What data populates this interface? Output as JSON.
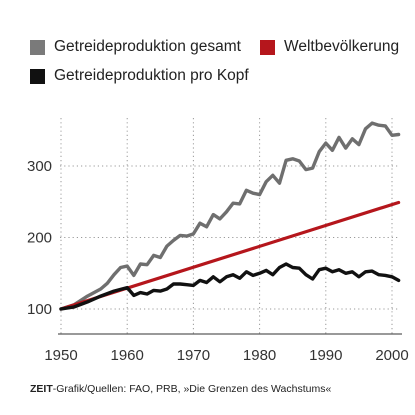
{
  "chart_data": {
    "type": "line",
    "xlim": [
      1950,
      2000
    ],
    "ylim": [
      100,
      350
    ],
    "x_ticks": [
      1950,
      1960,
      1970,
      1980,
      1990,
      2000
    ],
    "y_ticks": [
      100,
      200,
      300
    ],
    "grid": "horizontal dotted",
    "legend_position": "top",
    "series": [
      {
        "name": "Getreideproduktion gesamt",
        "color": "#6f6f6f",
        "points": [
          [
            1950,
            100
          ],
          [
            1952,
            106
          ],
          [
            1954,
            118
          ],
          [
            1956,
            128
          ],
          [
            1957,
            136
          ],
          [
            1958,
            148
          ],
          [
            1959,
            158
          ],
          [
            1960,
            160
          ],
          [
            1961,
            147
          ],
          [
            1962,
            163
          ],
          [
            1963,
            162
          ],
          [
            1964,
            175
          ],
          [
            1965,
            172
          ],
          [
            1966,
            188
          ],
          [
            1967,
            196
          ],
          [
            1968,
            203
          ],
          [
            1969,
            202
          ],
          [
            1970,
            205
          ],
          [
            1971,
            220
          ],
          [
            1972,
            215
          ],
          [
            1973,
            232
          ],
          [
            1974,
            226
          ],
          [
            1975,
            236
          ],
          [
            1976,
            248
          ],
          [
            1977,
            247
          ],
          [
            1978,
            266
          ],
          [
            1979,
            262
          ],
          [
            1980,
            260
          ],
          [
            1981,
            278
          ],
          [
            1982,
            287
          ],
          [
            1983,
            276
          ],
          [
            1984,
            308
          ],
          [
            1985,
            310
          ],
          [
            1986,
            307
          ],
          [
            1987,
            295
          ],
          [
            1988,
            297
          ],
          [
            1989,
            320
          ],
          [
            1990,
            332
          ],
          [
            1991,
            322
          ],
          [
            1992,
            340
          ],
          [
            1993,
            325
          ],
          [
            1994,
            338
          ],
          [
            1995,
            330
          ],
          [
            1996,
            352
          ],
          [
            1997,
            360
          ],
          [
            1998,
            357
          ],
          [
            1999,
            356
          ],
          [
            2000,
            343
          ],
          [
            2001,
            344
          ]
        ]
      },
      {
        "name": "Weltbevölkerung",
        "color": "#b5161c",
        "points": [
          [
            1950,
            100
          ],
          [
            2001,
            249
          ]
        ]
      },
      {
        "name": "Getreideproduktion pro Kopf",
        "color": "#111111",
        "points": [
          [
            1950,
            100
          ],
          [
            1952,
            103
          ],
          [
            1954,
            110
          ],
          [
            1956,
            118
          ],
          [
            1958,
            125
          ],
          [
            1960,
            130
          ],
          [
            1961,
            119
          ],
          [
            1962,
            123
          ],
          [
            1963,
            121
          ],
          [
            1964,
            126
          ],
          [
            1965,
            125
          ],
          [
            1966,
            128
          ],
          [
            1967,
            135
          ],
          [
            1968,
            135
          ],
          [
            1969,
            134
          ],
          [
            1970,
            133
          ],
          [
            1971,
            140
          ],
          [
            1972,
            137
          ],
          [
            1973,
            145
          ],
          [
            1974,
            138
          ],
          [
            1975,
            145
          ],
          [
            1976,
            148
          ],
          [
            1977,
            143
          ],
          [
            1978,
            152
          ],
          [
            1979,
            147
          ],
          [
            1980,
            150
          ],
          [
            1981,
            154
          ],
          [
            1982,
            148
          ],
          [
            1983,
            158
          ],
          [
            1984,
            163
          ],
          [
            1985,
            158
          ],
          [
            1986,
            157
          ],
          [
            1987,
            148
          ],
          [
            1988,
            142
          ],
          [
            1989,
            155
          ],
          [
            1990,
            157
          ],
          [
            1991,
            152
          ],
          [
            1992,
            155
          ],
          [
            1993,
            150
          ],
          [
            1994,
            152
          ],
          [
            1995,
            145
          ],
          [
            1996,
            152
          ],
          [
            1997,
            153
          ],
          [
            1998,
            148
          ],
          [
            1999,
            147
          ],
          [
            2000,
            145
          ],
          [
            2001,
            140
          ]
        ]
      }
    ]
  },
  "source": {
    "brand": "ZEIT",
    "text": "-Grafik/Quellen: FAO, PRB, »Die Grenzen des Wachstums«"
  }
}
